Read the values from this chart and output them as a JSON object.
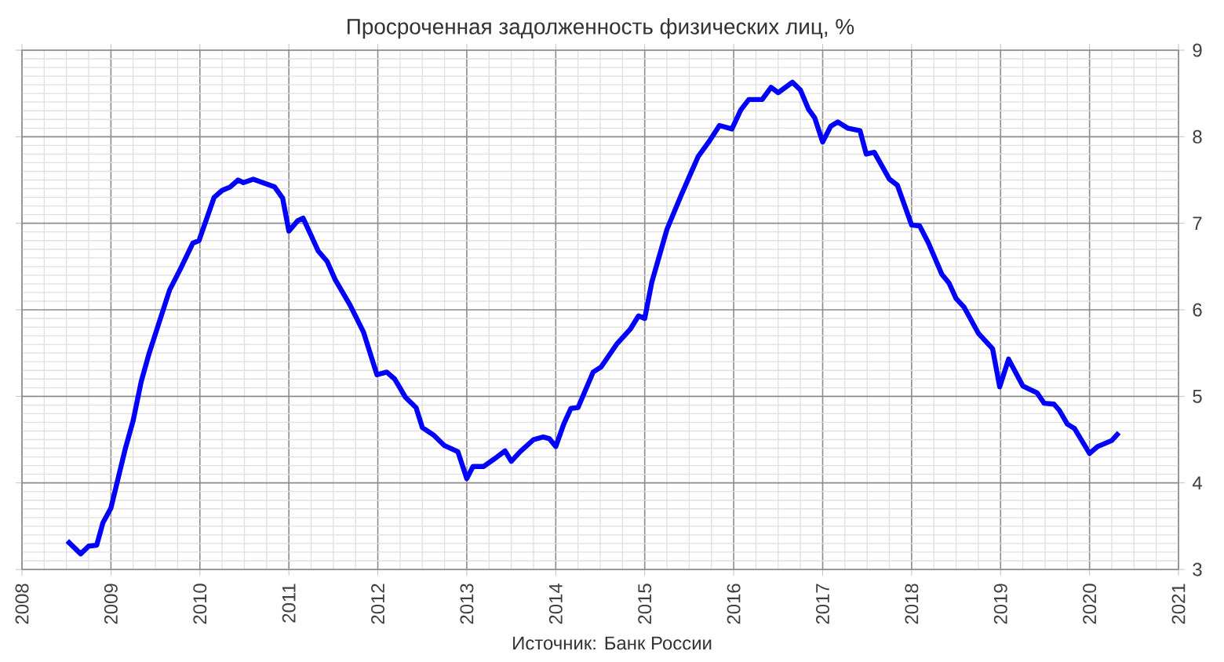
{
  "chart_data": {
    "type": "line",
    "title": "Просроченная задолженность физических лиц, %",
    "annotations": [
      "Источник: Банк России"
    ],
    "x": [
      2008.51,
      2008.66,
      2008.75,
      2008.84,
      2008.91,
      2009.0,
      2009.16,
      2009.25,
      2009.34,
      2009.43,
      2009.66,
      2009.78,
      2009.92,
      2009.99,
      2010.16,
      2010.25,
      2010.34,
      2010.43,
      2010.49,
      2010.6,
      2010.84,
      2010.93,
      2011.0,
      2011.1,
      2011.16,
      2011.25,
      2011.33,
      2011.43,
      2011.52,
      2011.69,
      2011.84,
      2011.99,
      2012.1,
      2012.19,
      2012.31,
      2012.43,
      2012.5,
      2012.63,
      2012.75,
      2012.9,
      2013.0,
      2013.07,
      2013.19,
      2013.34,
      2013.43,
      2013.5,
      2013.6,
      2013.75,
      2013.86,
      2013.93,
      2014.0,
      2014.09,
      2014.17,
      2014.25,
      2014.42,
      2014.51,
      2014.69,
      2014.84,
      2014.93,
      2015.0,
      2015.08,
      2015.25,
      2015.4,
      2015.51,
      2015.6,
      2015.72,
      2015.84,
      2015.98,
      2016.08,
      2016.17,
      2016.32,
      2016.42,
      2016.5,
      2016.66,
      2016.75,
      2016.84,
      2016.91,
      2017.0,
      2017.09,
      2017.17,
      2017.28,
      2017.42,
      2017.49,
      2017.58,
      2017.75,
      2017.84,
      2018.0,
      2018.09,
      2018.19,
      2018.34,
      2018.42,
      2018.5,
      2018.59,
      2018.75,
      2018.91,
      2018.99,
      2019.09,
      2019.25,
      2019.41,
      2019.49,
      2019.6,
      2019.66,
      2019.75,
      2019.83,
      2020.0,
      2020.09,
      2020.25,
      2020.33
    ],
    "values": [
      3.33,
      3.18,
      3.27,
      3.28,
      3.54,
      3.71,
      4.39,
      4.72,
      5.17,
      5.5,
      6.23,
      6.47,
      6.77,
      6.8,
      7.3,
      7.38,
      7.42,
      7.5,
      7.47,
      7.51,
      7.42,
      7.29,
      6.91,
      7.03,
      7.06,
      6.86,
      6.68,
      6.56,
      6.35,
      6.05,
      5.74,
      5.25,
      5.28,
      5.2,
      4.99,
      4.87,
      4.64,
      4.55,
      4.43,
      4.36,
      4.05,
      4.19,
      4.19,
      4.3,
      4.37,
      4.25,
      4.36,
      4.5,
      4.53,
      4.51,
      4.42,
      4.68,
      4.86,
      4.87,
      5.28,
      5.34,
      5.61,
      5.78,
      5.93,
      5.9,
      6.32,
      6.93,
      7.3,
      7.56,
      7.77,
      7.94,
      8.13,
      8.09,
      8.31,
      8.43,
      8.43,
      8.57,
      8.51,
      8.63,
      8.54,
      8.32,
      8.22,
      7.94,
      8.12,
      8.17,
      8.1,
      8.07,
      7.8,
      7.82,
      7.51,
      7.44,
      6.98,
      6.97,
      6.77,
      6.41,
      6.31,
      6.13,
      6.03,
      5.73,
      5.55,
      5.11,
      5.43,
      5.12,
      5.04,
      4.92,
      4.91,
      4.84,
      4.68,
      4.63,
      4.34,
      4.42,
      4.49,
      4.58
    ],
    "color": "#0000ff",
    "xlim": [
      2008,
      2021
    ],
    "ylim": [
      3,
      9
    ],
    "xticks": [
      2008,
      2009,
      2010,
      2011,
      2012,
      2013,
      2014,
      2015,
      2016,
      2017,
      2018,
      2019,
      2020,
      2021
    ],
    "yticks": [
      3,
      4,
      5,
      6,
      7,
      8,
      9
    ],
    "grid": true,
    "line_style": "solid",
    "marker": "none"
  }
}
